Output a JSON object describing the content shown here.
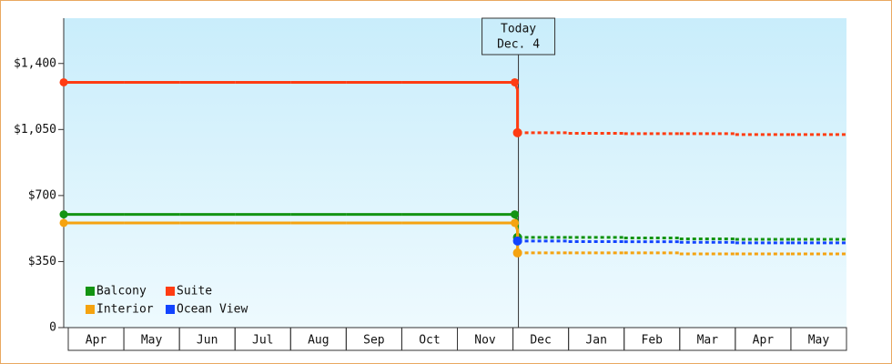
{
  "chart_data": {
    "type": "step",
    "categories": [
      "Apr",
      "May",
      "Jun",
      "Jul",
      "Aug",
      "Sep",
      "Oct",
      "Nov",
      "Dec",
      "Jan",
      "Feb",
      "Mar",
      "Apr",
      "May"
    ],
    "series": [
      {
        "name": "Balcony",
        "color": "#139413",
        "values": [
          600,
          600,
          600,
          600,
          600,
          600,
          600,
          600,
          478,
          478,
          475,
          470,
          468,
          468
        ]
      },
      {
        "name": "Suite",
        "color": "#ff3c12",
        "values": [
          1300,
          1300,
          1300,
          1300,
          1300,
          1300,
          1300,
          1300,
          1033,
          1030,
          1028,
          1028,
          1023,
          1023
        ]
      },
      {
        "name": "Interior",
        "color": "#f5a310",
        "values": [
          555,
          555,
          555,
          555,
          555,
          555,
          555,
          555,
          396,
          396,
          396,
          391,
          391,
          391
        ]
      },
      {
        "name": "Ocean View",
        "color": "#1244ff",
        "values": [
          null,
          null,
          null,
          null,
          null,
          null,
          null,
          null,
          459,
          456,
          455,
          452,
          449,
          449
        ]
      }
    ],
    "forecast_from": 8,
    "annotation": [
      "Today",
      "Dec. 4"
    ],
    "ylim": [
      0,
      1640
    ],
    "yticks": [
      0,
      {
        "value": 350,
        "label": "$350"
      },
      {
        "value": 700,
        "label": "$700"
      },
      {
        "value": 1050,
        "label": "$1,050"
      },
      {
        "value": 1400,
        "label": "$1,400"
      }
    ],
    "legend": "lower-left"
  }
}
